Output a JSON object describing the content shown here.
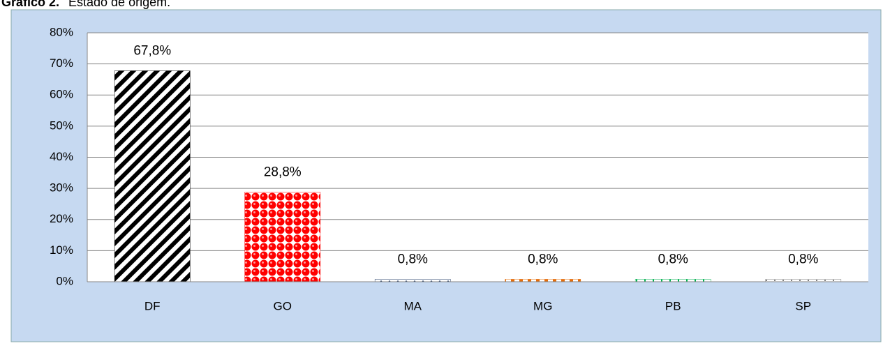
{
  "chart_data": {
    "type": "bar",
    "title": "Gráfico 2.",
    "subtitle": "Estado de origem.",
    "categories": [
      "DF",
      "GO",
      "MA",
      "MG",
      "PB",
      "SP"
    ],
    "values": [
      67.8,
      28.8,
      0.8,
      0.8,
      0.8,
      0.8
    ],
    "value_labels": [
      "67,8%",
      "28,8%",
      "0,8%",
      "0,8%",
      "0,8%",
      "0,8%"
    ],
    "colors": [
      "#000000",
      "#ff0000",
      "#1f3864",
      "#e46c0a",
      "#00b050",
      "#808080"
    ],
    "ylim": [
      0,
      80
    ],
    "yticks": [
      {
        "value": 0,
        "label": "0%"
      },
      {
        "value": 10,
        "label": "10%"
      },
      {
        "value": 20,
        "label": "20%"
      },
      {
        "value": 30,
        "label": "30%"
      },
      {
        "value": 40,
        "label": "40%"
      },
      {
        "value": 50,
        "label": "50%"
      },
      {
        "value": 60,
        "label": "60%"
      },
      {
        "value": 70,
        "label": "70%"
      },
      {
        "value": 80,
        "label": "80%"
      }
    ],
    "grid": true
  }
}
